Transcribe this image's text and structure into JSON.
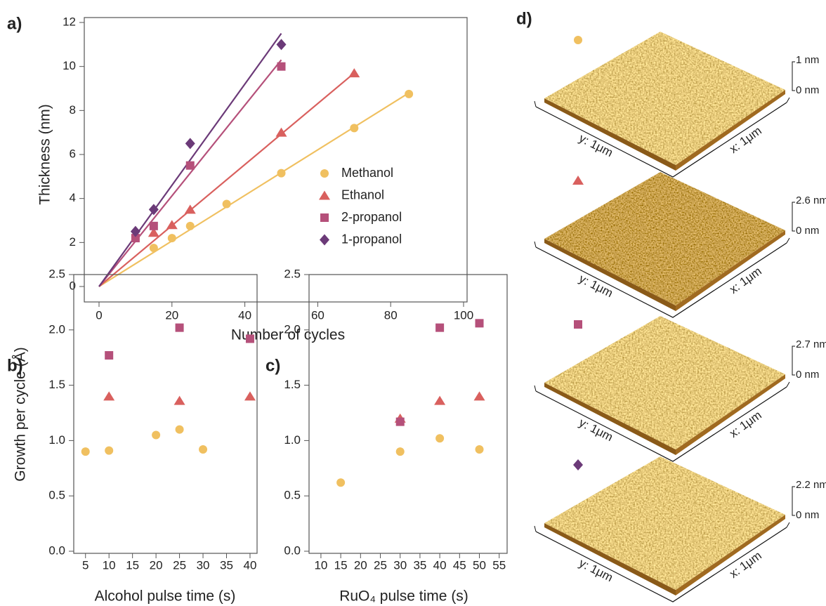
{
  "chart_data": [
    {
      "type": "scatter",
      "panel_label": "a)",
      "x_label": "Number of cycles",
      "y_label": "Thickness (nm)",
      "xlim": [
        0,
        100
      ],
      "ylim": [
        0,
        12
      ],
      "xticks": [
        0,
        20,
        40,
        60,
        80,
        100
      ],
      "yticks": [
        0,
        2,
        4,
        6,
        8,
        10,
        12
      ],
      "legend": "lower right",
      "series": [
        {
          "name": "Methanol",
          "color": "#f0c060",
          "marker": "circle",
          "x": [
            15,
            20,
            25,
            35,
            50,
            70,
            85
          ],
          "values": [
            1.75,
            2.2,
            2.75,
            3.75,
            5.15,
            7.2,
            8.75
          ],
          "fit_x": [
            0,
            85
          ],
          "fit_values": [
            0,
            8.8
          ]
        },
        {
          "name": "Ethanol",
          "color": "#d9605e",
          "marker": "triangle",
          "x": [
            15,
            20,
            25,
            50,
            70
          ],
          "values": [
            2.45,
            2.8,
            3.5,
            7.0,
            9.7
          ],
          "fit_x": [
            0,
            70
          ],
          "fit_values": [
            0,
            9.7
          ]
        },
        {
          "name": "2-propanol",
          "color": "#b5507a",
          "marker": "square",
          "x": [
            10,
            15,
            25,
            50
          ],
          "values": [
            2.2,
            2.75,
            5.5,
            10.0
          ],
          "fit_x": [
            0,
            50
          ],
          "fit_values": [
            0,
            10.3
          ]
        },
        {
          "name": "1-propanol",
          "color": "#6b3a78",
          "marker": "diamond",
          "x": [
            10,
            15,
            25,
            50
          ],
          "values": [
            2.5,
            3.5,
            6.5,
            11.0
          ],
          "fit_x": [
            0,
            50
          ],
          "fit_values": [
            0,
            11.5
          ]
        }
      ]
    },
    {
      "type": "scatter",
      "panel_label": "b)",
      "x_label": "Alcohol pulse time (s)",
      "y_label": "Growth per cycle (Å)",
      "xlim": [
        2.5,
        41.5
      ],
      "ylim": [
        0,
        2.5
      ],
      "xticks": [
        5,
        10,
        15,
        20,
        25,
        30,
        35,
        40
      ],
      "yticks": [
        {
          "value": 0,
          "label": "0.0"
        },
        0.5,
        {
          "value": 1,
          "label": "1.0"
        },
        1.5,
        {
          "value": 2,
          "label": "2.0"
        },
        2.5
      ],
      "series": [
        {
          "color": "#f0c060",
          "marker": "circle",
          "x": [
            5,
            10,
            20,
            25,
            30
          ],
          "values": [
            0.9,
            0.91,
            1.05,
            1.1,
            0.92
          ]
        },
        {
          "color": "#d9605e",
          "marker": "triangle",
          "x": [
            10,
            25,
            40
          ],
          "values": [
            1.4,
            1.36,
            1.4
          ]
        },
        {
          "color": "#b5507a",
          "marker": "square",
          "x": [
            10,
            25,
            40
          ],
          "values": [
            1.77,
            2.02,
            1.92
          ]
        }
      ]
    },
    {
      "type": "scatter",
      "panel_label": "c)",
      "x_label": "RuO₄ pulse time (s)",
      "xlim": [
        7,
        57
      ],
      "ylim": [
        0,
        2.5
      ],
      "xticks": [
        10,
        15,
        20,
        25,
        30,
        35,
        40,
        45,
        50,
        55
      ],
      "yticks": [
        {
          "value": 0,
          "label": "0.0"
        },
        0.5,
        {
          "value": 1,
          "label": "1.0"
        },
        1.5,
        {
          "value": 2,
          "label": "2.0"
        },
        2.5
      ],
      "series": [
        {
          "color": "#f0c060",
          "marker": "circle",
          "x": [
            15,
            30,
            40,
            50
          ],
          "values": [
            0.62,
            0.9,
            1.02,
            0.92
          ]
        },
        {
          "color": "#d9605e",
          "marker": "triangle",
          "x": [
            30,
            40,
            50
          ],
          "values": [
            1.2,
            1.36,
            1.4
          ]
        },
        {
          "color": "#b5507a",
          "marker": "square",
          "x": [
            30,
            40,
            50
          ],
          "values": [
            1.17,
            2.02,
            2.06
          ]
        }
      ]
    }
  ],
  "afm": {
    "panel_label": "d)",
    "images": [
      {
        "z_max": "1 nm",
        "z_min": "0 nm",
        "y_axis": "y: 1μm",
        "x_axis": "x: 1μm"
      },
      {
        "z_max": "2.6 nm",
        "z_min": "0 nm",
        "y_axis": "y: 1μm",
        "x_axis": "x: 1μm"
      },
      {
        "z_max": "2.7 nm",
        "z_min": "0 nm",
        "y_axis": "y: 1μm",
        "x_axis": "x: 1μm"
      },
      {
        "z_max": "2.2 nm",
        "z_min": "0 nm",
        "y_axis": "y: 1μm",
        "x_axis": "x: 1μm"
      }
    ]
  }
}
